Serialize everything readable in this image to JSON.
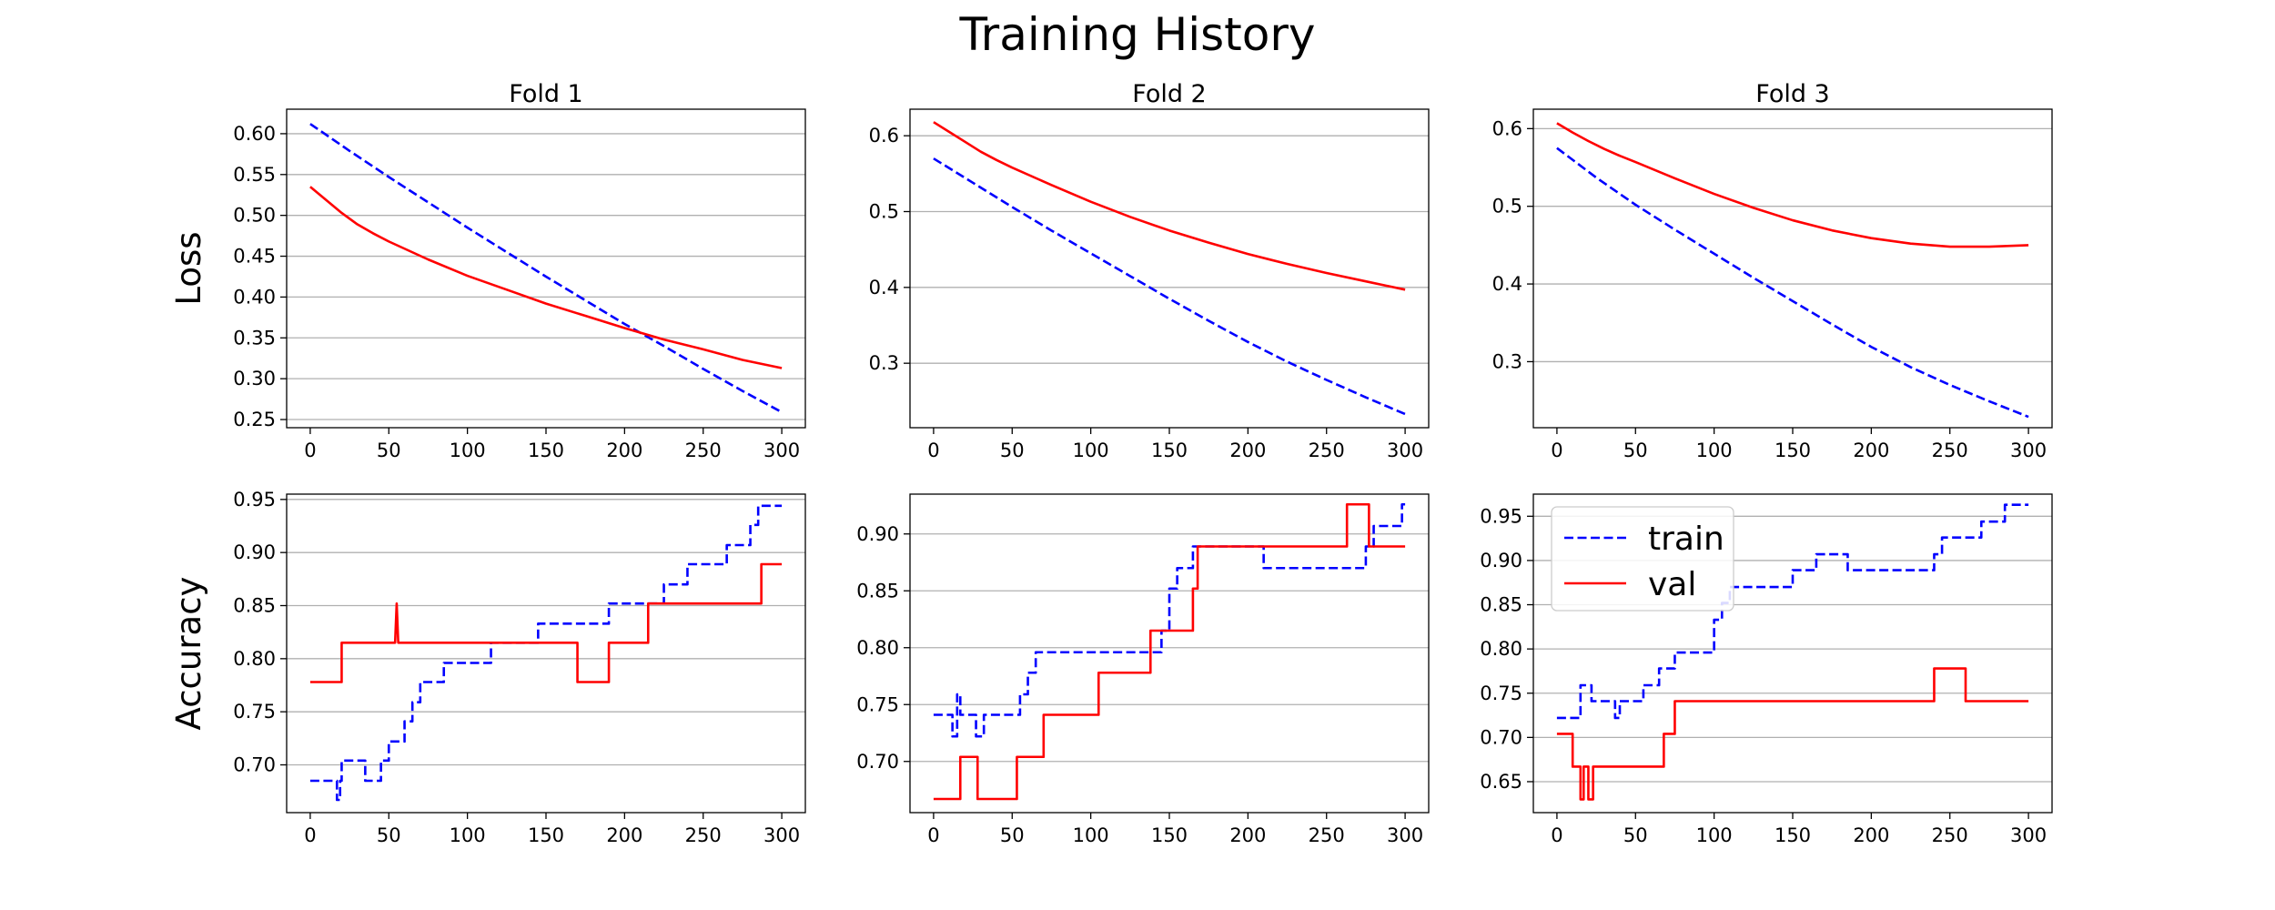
{
  "figure": {
    "title": "Training History"
  },
  "colors": {
    "train": "#0000ff",
    "val": "#ff0000",
    "grid": "#b0b0b0"
  },
  "chart_data": [
    {
      "type": "line",
      "title": "Fold 1",
      "ylabel": "Loss",
      "xlim": [
        -15,
        315
      ],
      "ylim": [
        0.24,
        0.63
      ],
      "xticks": [
        0,
        50,
        100,
        150,
        200,
        250,
        300
      ],
      "yticks": [
        0.25,
        0.3,
        0.35,
        0.4,
        0.45,
        0.5,
        0.55,
        0.6
      ],
      "ytick_labels": [
        "0.25",
        "0.30",
        "0.35",
        "0.40",
        "0.45",
        "0.50",
        "0.55",
        "0.60"
      ],
      "grid": true,
      "legend": false,
      "series": [
        {
          "key": "train",
          "style": "dashed",
          "x": [
            0,
            25,
            50,
            75,
            100,
            125,
            150,
            175,
            200,
            225,
            250,
            275,
            300
          ],
          "y": [
            0.612,
            0.579,
            0.547,
            0.516,
            0.485,
            0.455,
            0.425,
            0.396,
            0.367,
            0.34,
            0.312,
            0.285,
            0.259
          ]
        },
        {
          "key": "val",
          "style": "solid",
          "x": [
            0,
            10,
            20,
            30,
            40,
            50,
            75,
            100,
            125,
            150,
            175,
            200,
            225,
            250,
            275,
            300
          ],
          "y": [
            0.535,
            0.519,
            0.503,
            0.489,
            0.478,
            0.468,
            0.446,
            0.426,
            0.409,
            0.392,
            0.377,
            0.362,
            0.348,
            0.336,
            0.323,
            0.313
          ]
        }
      ]
    },
    {
      "type": "line",
      "title": "Fold 2",
      "ylabel": "",
      "xlim": [
        -15,
        315
      ],
      "ylim": [
        0.215,
        0.635
      ],
      "xticks": [
        0,
        50,
        100,
        150,
        200,
        250,
        300
      ],
      "yticks": [
        0.3,
        0.4,
        0.5,
        0.6
      ],
      "ytick_labels": [
        "0.3",
        "0.4",
        "0.5",
        "0.6"
      ],
      "grid": true,
      "legend": false,
      "series": [
        {
          "key": "train",
          "style": "dashed",
          "x": [
            0,
            25,
            50,
            75,
            100,
            125,
            150,
            175,
            200,
            225,
            250,
            275,
            300
          ],
          "y": [
            0.57,
            0.538,
            0.506,
            0.475,
            0.445,
            0.415,
            0.385,
            0.356,
            0.328,
            0.302,
            0.278,
            0.255,
            0.233
          ]
        },
        {
          "key": "val",
          "style": "solid",
          "x": [
            0,
            10,
            20,
            30,
            40,
            50,
            75,
            100,
            125,
            150,
            175,
            200,
            225,
            250,
            275,
            300
          ],
          "y": [
            0.618,
            0.605,
            0.592,
            0.579,
            0.568,
            0.558,
            0.535,
            0.513,
            0.493,
            0.475,
            0.459,
            0.444,
            0.431,
            0.419,
            0.408,
            0.397
          ]
        }
      ]
    },
    {
      "type": "line",
      "title": "Fold 3",
      "ylabel": "",
      "xlim": [
        -15,
        315
      ],
      "ylim": [
        0.215,
        0.625
      ],
      "xticks": [
        0,
        50,
        100,
        150,
        200,
        250,
        300
      ],
      "yticks": [
        0.3,
        0.4,
        0.5,
        0.6
      ],
      "ytick_labels": [
        "0.3",
        "0.4",
        "0.5",
        "0.6"
      ],
      "grid": true,
      "legend": false,
      "series": [
        {
          "key": "train",
          "style": "dashed",
          "x": [
            0,
            25,
            50,
            75,
            100,
            125,
            150,
            175,
            200,
            225,
            250,
            275,
            300
          ],
          "y": [
            0.575,
            0.537,
            0.502,
            0.47,
            0.439,
            0.408,
            0.378,
            0.348,
            0.319,
            0.293,
            0.27,
            0.249,
            0.229
          ]
        },
        {
          "key": "val",
          "style": "solid",
          "x": [
            0,
            10,
            20,
            30,
            40,
            50,
            75,
            100,
            125,
            150,
            175,
            200,
            225,
            250,
            275,
            300
          ],
          "y": [
            0.607,
            0.595,
            0.584,
            0.574,
            0.565,
            0.557,
            0.536,
            0.516,
            0.498,
            0.482,
            0.469,
            0.459,
            0.452,
            0.448,
            0.448,
            0.45
          ]
        }
      ]
    },
    {
      "type": "line",
      "title": "",
      "ylabel": "Accuracy",
      "xlim": [
        -15,
        315
      ],
      "ylim": [
        0.655,
        0.955
      ],
      "xticks": [
        0,
        50,
        100,
        150,
        200,
        250,
        300
      ],
      "yticks": [
        0.7,
        0.75,
        0.8,
        0.85,
        0.9,
        0.95
      ],
      "ytick_labels": [
        "0.70",
        "0.75",
        "0.80",
        "0.85",
        "0.90",
        "0.95"
      ],
      "grid": true,
      "legend": false,
      "series": [
        {
          "key": "train",
          "style": "dashed",
          "x": [
            0,
            10,
            10,
            13,
            13,
            15,
            15,
            17,
            17,
            19,
            19,
            20,
            20,
            35,
            35,
            45,
            45,
            50,
            50,
            60,
            60,
            65,
            65,
            70,
            70,
            85,
            85,
            115,
            115,
            145,
            145,
            190,
            190,
            210,
            210,
            225,
            225,
            240,
            240,
            265,
            265,
            280,
            280,
            285,
            285,
            290,
            290,
            300
          ],
          "y": [
            0.685,
            0.685,
            0.685,
            0.685,
            0.685,
            0.685,
            0.685,
            0.685,
            0.667,
            0.667,
            0.685,
            0.685,
            0.704,
            0.704,
            0.685,
            0.685,
            0.704,
            0.704,
            0.722,
            0.722,
            0.741,
            0.741,
            0.759,
            0.759,
            0.778,
            0.778,
            0.796,
            0.796,
            0.815,
            0.815,
            0.833,
            0.833,
            0.852,
            0.852,
            0.852,
            0.852,
            0.87,
            0.87,
            0.889,
            0.889,
            0.907,
            0.907,
            0.926,
            0.926,
            0.944,
            0.944,
            0.944,
            0.944
          ]
        },
        {
          "key": "val",
          "style": "solid",
          "x": [
            0,
            20,
            20,
            54,
            55,
            56,
            57,
            170,
            170,
            190,
            190,
            215,
            215,
            287,
            287,
            300
          ],
          "y": [
            0.778,
            0.778,
            0.815,
            0.815,
            0.852,
            0.815,
            0.815,
            0.815,
            0.778,
            0.778,
            0.815,
            0.815,
            0.852,
            0.852,
            0.889,
            0.889
          ]
        }
      ]
    },
    {
      "type": "line",
      "title": "",
      "ylabel": "",
      "xlim": [
        -15,
        315
      ],
      "ylim": [
        0.655,
        0.935
      ],
      "xticks": [
        0,
        50,
        100,
        150,
        200,
        250,
        300
      ],
      "yticks": [
        0.7,
        0.75,
        0.8,
        0.85,
        0.9
      ],
      "ytick_labels": [
        "0.70",
        "0.75",
        "0.80",
        "0.85",
        "0.90"
      ],
      "grid": true,
      "legend": false,
      "series": [
        {
          "key": "train",
          "style": "dashed",
          "x": [
            0,
            12,
            12,
            15,
            15,
            17,
            17,
            18,
            18,
            20,
            20,
            27,
            27,
            32,
            32,
            55,
            55,
            60,
            60,
            65,
            65,
            75,
            75,
            145,
            145,
            150,
            150,
            155,
            155,
            165,
            165,
            175,
            175,
            210,
            210,
            275,
            275,
            280,
            280,
            298,
            298,
            300
          ],
          "y": [
            0.741,
            0.741,
            0.722,
            0.722,
            0.759,
            0.759,
            0.741,
            0.741,
            0.741,
            0.741,
            0.741,
            0.741,
            0.722,
            0.722,
            0.741,
            0.741,
            0.759,
            0.759,
            0.778,
            0.778,
            0.796,
            0.796,
            0.796,
            0.796,
            0.815,
            0.815,
            0.852,
            0.852,
            0.87,
            0.87,
            0.889,
            0.889,
            0.889,
            0.889,
            0.87,
            0.87,
            0.889,
            0.889,
            0.907,
            0.907,
            0.926,
            0.926
          ]
        },
        {
          "key": "val",
          "style": "solid",
          "x": [
            0,
            17,
            17,
            28,
            28,
            53,
            53,
            70,
            70,
            105,
            105,
            138,
            138,
            165,
            165,
            168,
            168,
            263,
            263,
            277,
            277,
            300
          ],
          "y": [
            0.667,
            0.667,
            0.704,
            0.704,
            0.667,
            0.667,
            0.704,
            0.704,
            0.741,
            0.741,
            0.778,
            0.778,
            0.815,
            0.815,
            0.852,
            0.852,
            0.889,
            0.889,
            0.926,
            0.926,
            0.889,
            0.889
          ]
        }
      ]
    },
    {
      "type": "line",
      "title": "",
      "ylabel": "",
      "xlim": [
        -15,
        315
      ],
      "ylim": [
        0.615,
        0.975
      ],
      "xticks": [
        0,
        50,
        100,
        150,
        200,
        250,
        300
      ],
      "yticks": [
        0.65,
        0.7,
        0.75,
        0.8,
        0.85,
        0.9,
        0.95
      ],
      "ytick_labels": [
        "0.65",
        "0.70",
        "0.75",
        "0.80",
        "0.85",
        "0.90",
        "0.95"
      ],
      "grid": true,
      "legend": true,
      "legend_loc": "upper-left",
      "legend_entries": [
        {
          "key": "train",
          "label": "train",
          "style": "dashed"
        },
        {
          "key": "val",
          "label": "val",
          "style": "solid"
        }
      ],
      "series": [
        {
          "key": "train",
          "style": "dashed",
          "x": [
            0,
            15,
            15,
            22,
            22,
            37,
            37,
            40,
            40,
            42,
            42,
            55,
            55,
            65,
            65,
            75,
            75,
            100,
            100,
            105,
            105,
            110,
            110,
            115,
            115,
            130,
            130,
            150,
            150,
            155,
            155,
            165,
            165,
            185,
            185,
            240,
            240,
            245,
            245,
            255,
            255,
            270,
            270,
            285,
            285,
            300
          ],
          "y": [
            0.722,
            0.722,
            0.759,
            0.759,
            0.741,
            0.741,
            0.722,
            0.722,
            0.741,
            0.741,
            0.741,
            0.741,
            0.759,
            0.759,
            0.778,
            0.778,
            0.796,
            0.796,
            0.833,
            0.833,
            0.852,
            0.852,
            0.87,
            0.87,
            0.87,
            0.87,
            0.87,
            0.87,
            0.889,
            0.889,
            0.889,
            0.889,
            0.907,
            0.907,
            0.889,
            0.889,
            0.907,
            0.907,
            0.926,
            0.926,
            0.926,
            0.926,
            0.944,
            0.944,
            0.963,
            0.963
          ]
        },
        {
          "key": "val",
          "style": "solid",
          "x": [
            0,
            10,
            10,
            15,
            15,
            17,
            17,
            20,
            20,
            23,
            23,
            28,
            28,
            68,
            68,
            75,
            75,
            240,
            240,
            260,
            260,
            300
          ],
          "y": [
            0.704,
            0.704,
            0.667,
            0.667,
            0.63,
            0.63,
            0.667,
            0.667,
            0.63,
            0.63,
            0.667,
            0.667,
            0.667,
            0.667,
            0.704,
            0.704,
            0.741,
            0.741,
            0.778,
            0.778,
            0.741,
            0.741
          ]
        }
      ]
    }
  ]
}
